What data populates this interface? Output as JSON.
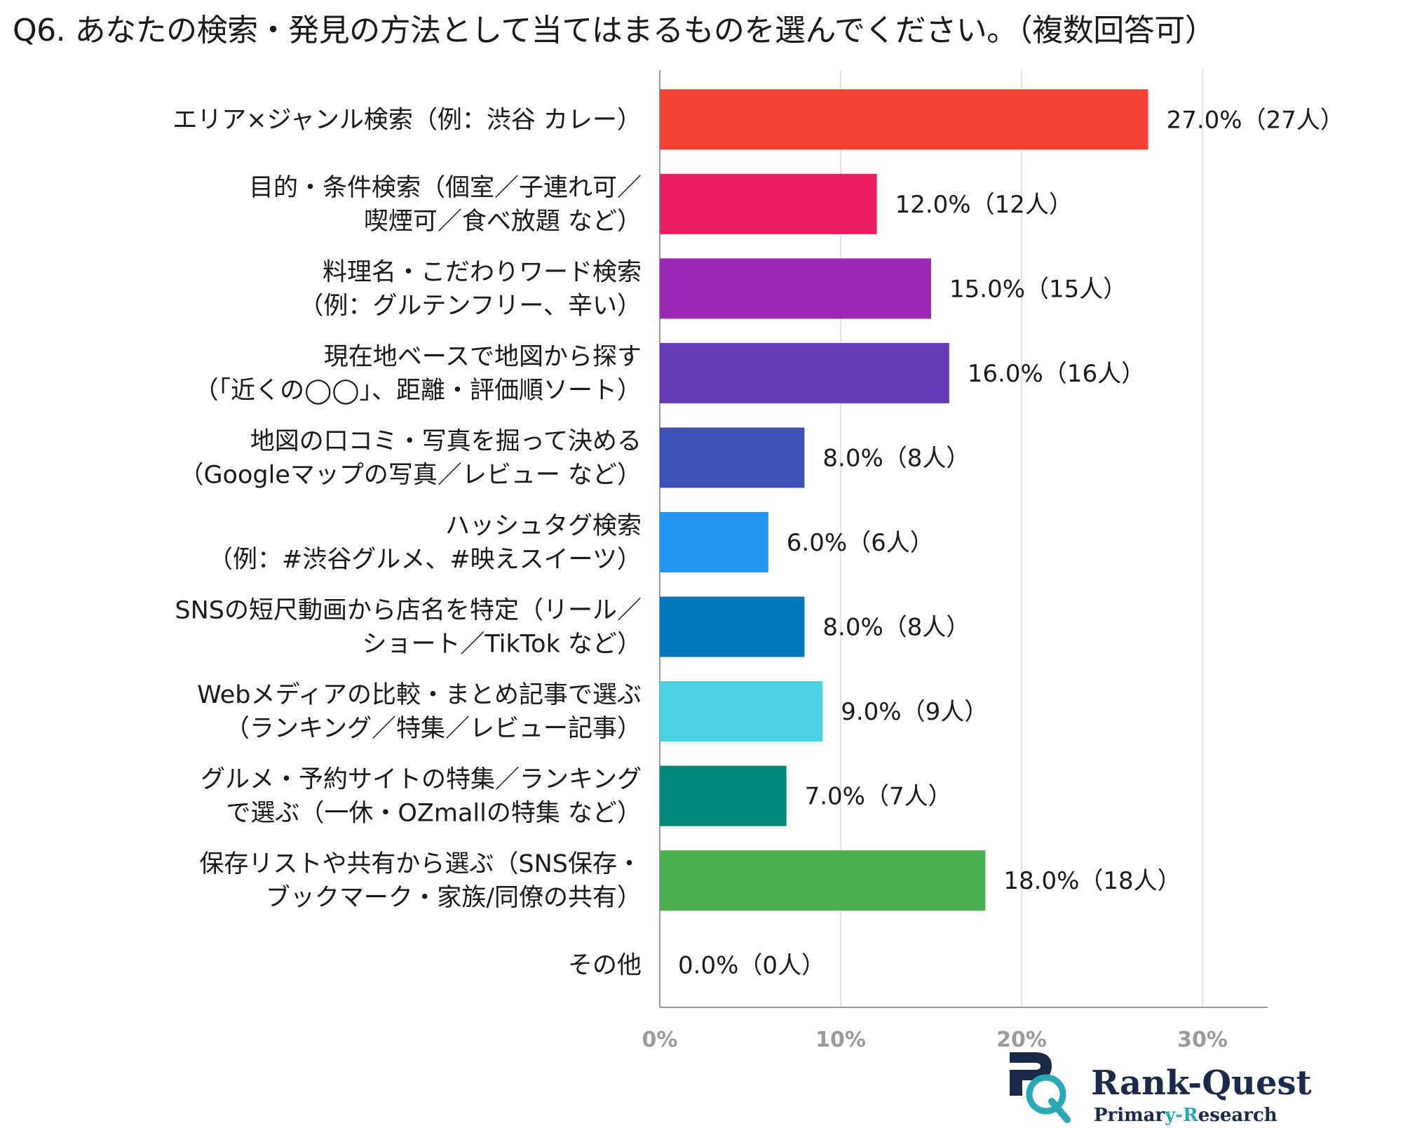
{
  "chart_data": {
    "type": "bar",
    "orientation": "horizontal",
    "title": "Q6. あなたの検索・発見の方法として当てはまるものを選んでください。（複数回答可）",
    "categories": [
      [
        "エリア×ジャンル検索（例：渋谷 カレー）"
      ],
      [
        "目的・条件検索（個室／子連れ可／",
        "喫煙可／食べ放題 など）"
      ],
      [
        "料理名・こだわりワード検索",
        "（例：グルテンフリー、辛い）"
      ],
      [
        "現在地ベースで地図から探す",
        "（「近くの◯◯」、距離・評価順ソート）"
      ],
      [
        "地図の口コミ・写真を掘って決める",
        "（Googleマップの写真／レビュー など）"
      ],
      [
        "ハッシュタグ検索",
        "（例：#渋谷グルメ、#映えスイーツ）"
      ],
      [
        "SNSの短尺動画から店名を特定（リール／",
        "ショート／TikTok など）"
      ],
      [
        "Webメディアの比較・まとめ記事で選ぶ",
        "（ランキング／特集／レビュー記事）"
      ],
      [
        "グルメ・予約サイトの特集／ランキング",
        "で選ぶ（一休・OZmallの特集 など）"
      ],
      [
        "保存リストや共有から選ぶ（SNS保存・",
        "ブックマーク・家族/同僚の共有）"
      ],
      [
        "その他"
      ]
    ],
    "values": [
      27.0,
      12.0,
      15.0,
      16.0,
      8.0,
      6.0,
      8.0,
      9.0,
      7.0,
      18.0,
      0.0
    ],
    "value_labels": [
      "27.0%（27人）",
      "12.0%（12人）",
      "15.0%（15人）",
      "16.0%（16人）",
      "8.0%（8人）",
      "6.0%（6人）",
      "8.0%（8人）",
      "9.0%（9人）",
      "7.0%（7人）",
      "18.0%（18人）",
      "0.0%（0人）"
    ],
    "colors": [
      "#f44336",
      "#e91e63",
      "#9c27b0",
      "#673ab7",
      "#3f51b5",
      "#2196f3",
      "#0277bd",
      "#4dd0e1",
      "#00897b",
      "#4caf50",
      "#9e9e9e"
    ],
    "xlim": [
      0,
      33
    ],
    "xticks": [
      0,
      10,
      20,
      30
    ],
    "xtick_labels": [
      "0%",
      "10%",
      "20%",
      "30%"
    ],
    "grid": true,
    "xlabel": "",
    "ylabel": ""
  },
  "logo": {
    "name": "Rank-Quest",
    "tagline_part1": "Primar",
    "tagline_accent": "y-R",
    "tagline_part2": "esearch"
  }
}
